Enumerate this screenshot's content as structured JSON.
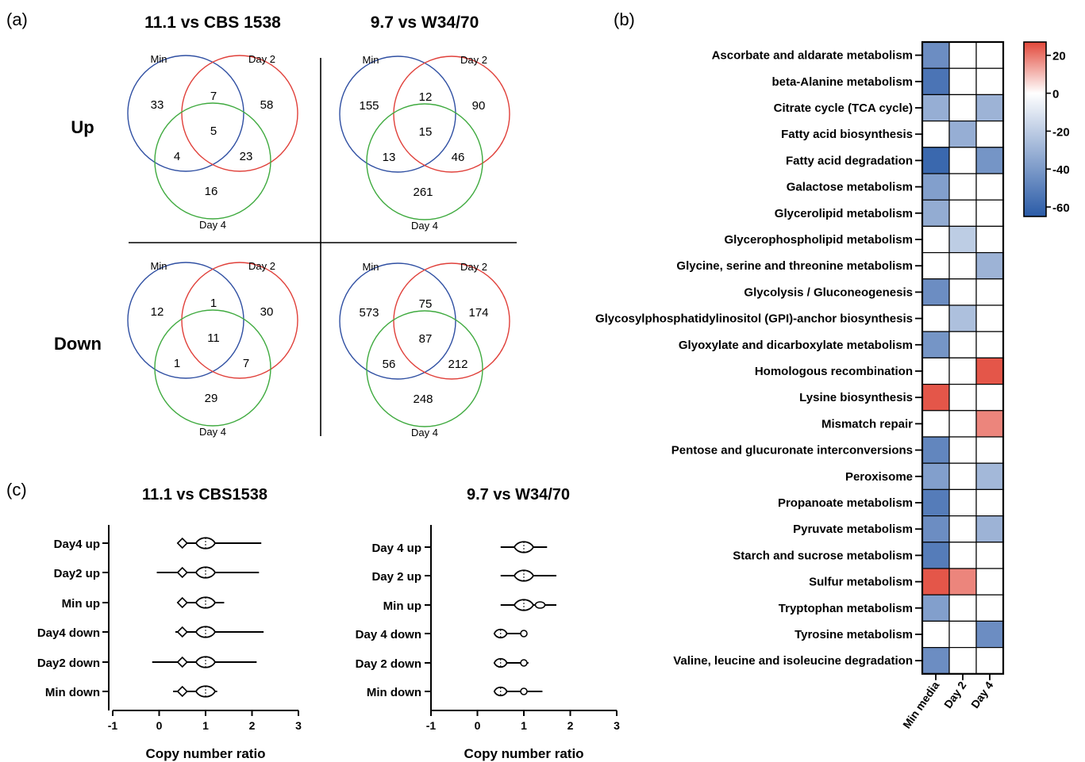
{
  "panels": {
    "a": "(a)",
    "b": "(b)",
    "c": "(c)"
  },
  "venn": {
    "col_titles": [
      "11.1 vs CBS 1538",
      "9.7 vs W34/70"
    ],
    "row_titles": [
      "Up",
      "Down"
    ],
    "set_labels": {
      "min": "Min",
      "day2": "Day 2",
      "day4": "Day 4"
    },
    "colors": {
      "min": "#2f4fa2",
      "day2": "#e0403a",
      "day4": "#3faa3f"
    },
    "diagrams": [
      {
        "min_only": "33",
        "day2_only": "58",
        "day4_only": "16",
        "min_day2": "7",
        "min_day4": "4",
        "day2_day4": "23",
        "all": "5"
      },
      {
        "min_only": "155",
        "day2_only": "90",
        "day4_only": "261",
        "min_day2": "12",
        "min_day4": "13",
        "day2_day4": "46",
        "all": "15"
      },
      {
        "min_only": "12",
        "day2_only": "30",
        "day4_only": "29",
        "min_day2": "1",
        "min_day4": "1",
        "day2_day4": "7",
        "all": "11"
      },
      {
        "min_only": "573",
        "day2_only": "174",
        "day4_only": "248",
        "min_day2": "75",
        "min_day4": "56",
        "day2_day4": "212",
        "all": "87"
      }
    ]
  },
  "chart_data": [
    {
      "type": "heatmap",
      "panel": "b",
      "columns": [
        "Min media",
        "Day 2",
        "Day 4"
      ],
      "rows": [
        "Ascorbate and aldarate metabolism",
        "beta-Alanine metabolism",
        "Citrate cycle (TCA cycle)",
        "Fatty acid biosynthesis",
        "Fatty acid degradation",
        "Galactose metabolism",
        "Glycerolipid metabolism",
        "Glycerophospholipid metabolism",
        "Glycine, serine and threonine metabolism",
        "Glycolysis / Gluconeogenesis",
        "Glycosylphosphatidylinositol (GPI)-anchor biosynthesis",
        "Glyoxylate and dicarboxylate metabolism",
        "Homologous recombination",
        "Lysine biosynthesis",
        "Mismatch repair",
        "Pentose and glucuronate interconversions",
        "Peroxisome",
        "Propanoate metabolism",
        "Pyruvate metabolism",
        "Starch and sucrose metabolism",
        "Sulfur metabolism",
        "Tryptophan metabolism",
        "Tyrosine metabolism",
        "Valine, leucine and isoleucine degradation"
      ],
      "values": [
        [
          -45,
          0,
          0
        ],
        [
          -55,
          0,
          0
        ],
        [
          -32,
          0,
          -30
        ],
        [
          0,
          -32,
          0
        ],
        [
          -60,
          0,
          -42
        ],
        [
          -38,
          0,
          0
        ],
        [
          -33,
          0,
          0
        ],
        [
          0,
          -20,
          0
        ],
        [
          0,
          0,
          -30
        ],
        [
          -45,
          0,
          0
        ],
        [
          0,
          -25,
          0
        ],
        [
          -42,
          0,
          0
        ],
        [
          0,
          0,
          25
        ],
        [
          25,
          0,
          0
        ],
        [
          0,
          0,
          18
        ],
        [
          -48,
          0,
          0
        ],
        [
          -38,
          0,
          -28
        ],
        [
          -52,
          0,
          0
        ],
        [
          -45,
          0,
          -30
        ],
        [
          -52,
          0,
          0
        ],
        [
          25,
          18,
          0
        ],
        [
          -38,
          0,
          0
        ],
        [
          0,
          0,
          -45
        ],
        [
          -45,
          0,
          0
        ]
      ],
      "colorbar": {
        "min": -65,
        "max": 27,
        "ticks": [
          20,
          0,
          -20,
          -40,
          -60
        ],
        "colors": {
          "low": "#2a5ba7",
          "mid": "#ffffff",
          "high": "#e2483a"
        }
      }
    },
    {
      "type": "violin",
      "panel": "c",
      "title": "11.1 vs CBS1538",
      "xlabel": "Copy number ratio",
      "xlim": [
        -1,
        3
      ],
      "xticks": [
        "-1",
        "0",
        "1",
        "2",
        "3"
      ],
      "categories": [
        "Day4 up",
        "Day2 up",
        "Min up",
        "Day4 down",
        "Day2 down",
        "Min down"
      ],
      "ranges": [
        [
          0.45,
          2.2
        ],
        [
          -0.05,
          2.15
        ],
        [
          0.45,
          1.4
        ],
        [
          0.35,
          2.25
        ],
        [
          -0.15,
          2.1
        ],
        [
          0.3,
          1.25
        ]
      ],
      "modes": [
        [
          0.55,
          0.3
        ],
        [
          1.0,
          1.0
        ]
      ]
    },
    {
      "type": "violin",
      "panel": "c",
      "title": "9.7 vs W34/70",
      "xlabel": "Copy number ratio",
      "xlim": [
        -1,
        3
      ],
      "xticks": [
        "-1",
        "0",
        "1",
        "2",
        "3"
      ],
      "categories": [
        "Day 4 up",
        "Day 2 up",
        "Min up",
        "Day 4 down",
        "Day 2 down",
        "Min down"
      ],
      "ranges": [
        [
          0.5,
          1.5
        ],
        [
          0.5,
          1.7
        ],
        [
          0.5,
          1.7
        ],
        [
          0.45,
          1.0
        ],
        [
          0.45,
          1.1
        ],
        [
          0.45,
          1.4
        ]
      ]
    }
  ]
}
